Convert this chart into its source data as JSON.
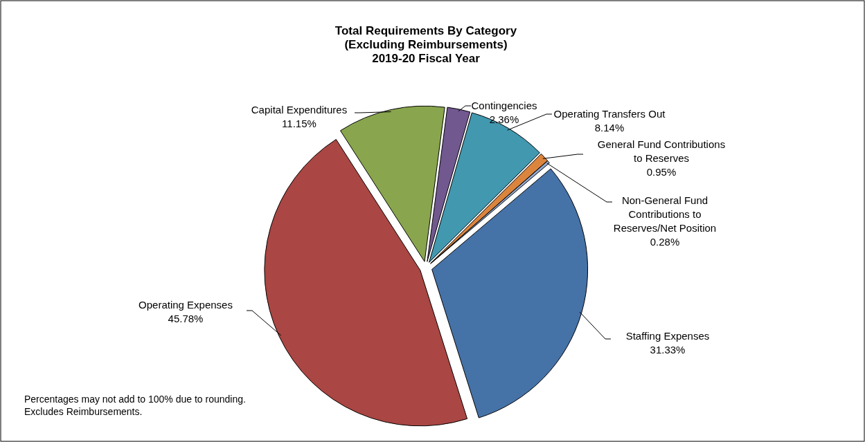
{
  "chart_data": {
    "type": "pie",
    "title": "Total Requirements By Category\n(Excluding Reimbursements)\n2019-20 Fiscal Year",
    "categories": [
      "Contingencies",
      "Operating Transfers Out",
      "General Fund Contributions\nto Reserves",
      "Non-General Fund\nContributions to\nReserves/Net Position",
      "Staffing Expenses",
      "Operating Expenses",
      "Capital Expenditures"
    ],
    "values": [
      2.36,
      8.14,
      0.95,
      0.28,
      31.33,
      45.78,
      11.15
    ],
    "value_labels": [
      "2.36%",
      "8.14%",
      "0.95%",
      "0.28%",
      "31.33%",
      "45.78%",
      "11.15%"
    ],
    "colors": [
      "#71588f",
      "#4198af",
      "#db843d",
      "#93a9cf",
      "#4572a7",
      "#aa4643",
      "#89a54e"
    ],
    "annotations": [
      "Percentages may not add to 100% due to rounding.",
      "Excludes Reimbursements."
    ]
  }
}
